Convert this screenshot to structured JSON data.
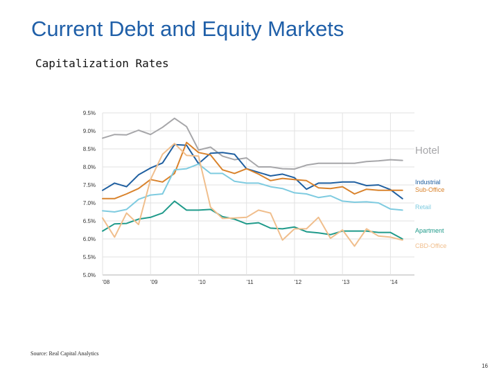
{
  "slide": {
    "title": "Current Debt and Equity Markets",
    "subtitle": "Capitalization Rates",
    "source": "Source: Real Capital Analytics",
    "page_number": "16"
  },
  "chart_data": {
    "type": "line",
    "title": "",
    "xlabel": "",
    "ylabel": "",
    "x_ticks": [
      "'08",
      "'09",
      "'10",
      "'11",
      "'12",
      "'13",
      "'14"
    ],
    "y_ticks": [
      "9.5%",
      "9.0%",
      "8.5%",
      "8.0%",
      "7.5%",
      "7.0%",
      "6.5%",
      "6.0%",
      "5.5%",
      "5.0%"
    ],
    "ylim": [
      5.0,
      9.5
    ],
    "xlim": [
      2008.0,
      2014.5
    ],
    "grid": true,
    "legend": "inline-right",
    "series": [
      {
        "name": "Hotel",
        "color": "#a6a6a9",
        "x": [
          2008.0,
          2008.25,
          2008.5,
          2008.75,
          2009.0,
          2009.25,
          2009.5,
          2009.75,
          2010.0,
          2010.25,
          2010.5,
          2010.75,
          2011.0,
          2011.25,
          2011.5,
          2011.75,
          2012.0,
          2012.25,
          2012.5,
          2012.75,
          2013.0,
          2013.25,
          2013.5,
          2013.75,
          2014.0,
          2014.25
        ],
        "values": [
          8.8,
          8.9,
          8.89,
          9.02,
          8.9,
          9.1,
          9.35,
          9.12,
          8.47,
          8.55,
          8.3,
          8.2,
          8.25,
          8.0,
          8.0,
          7.95,
          7.94,
          8.05,
          8.1,
          8.1,
          8.1,
          8.1,
          8.15,
          8.17,
          8.2,
          8.18
        ]
      },
      {
        "name": "Industrial",
        "color": "#1f5fa0",
        "x": [
          2008.0,
          2008.25,
          2008.5,
          2008.75,
          2009.0,
          2009.25,
          2009.5,
          2009.75,
          2010.0,
          2010.25,
          2010.5,
          2010.75,
          2011.0,
          2011.25,
          2011.5,
          2011.75,
          2012.0,
          2012.25,
          2012.5,
          2012.75,
          2013.0,
          2013.25,
          2013.5,
          2013.75,
          2014.0,
          2014.25
        ],
        "values": [
          7.35,
          7.55,
          7.45,
          7.78,
          7.97,
          8.11,
          8.62,
          8.6,
          8.09,
          8.38,
          8.4,
          8.35,
          7.95,
          7.85,
          7.75,
          7.8,
          7.7,
          7.38,
          7.55,
          7.55,
          7.58,
          7.58,
          7.48,
          7.5,
          7.37,
          7.12
        ]
      },
      {
        "name": "Sub-Office",
        "color": "#d9822b",
        "x": [
          2008.0,
          2008.25,
          2008.5,
          2008.75,
          2009.0,
          2009.25,
          2009.5,
          2009.75,
          2010.0,
          2010.25,
          2010.5,
          2010.75,
          2011.0,
          2011.25,
          2011.5,
          2011.75,
          2012.0,
          2012.25,
          2012.5,
          2012.75,
          2013.0,
          2013.25,
          2013.5,
          2013.75,
          2014.0,
          2014.25
        ],
        "values": [
          7.12,
          7.12,
          7.25,
          7.4,
          7.65,
          7.58,
          7.82,
          8.68,
          8.4,
          8.33,
          7.92,
          7.82,
          7.95,
          7.8,
          7.62,
          7.68,
          7.65,
          7.62,
          7.42,
          7.4,
          7.45,
          7.25,
          7.38,
          7.35,
          7.35,
          7.35
        ]
      },
      {
        "name": "Retail",
        "color": "#7ecbe0",
        "x": [
          2008.0,
          2008.25,
          2008.5,
          2008.75,
          2009.0,
          2009.25,
          2009.5,
          2009.75,
          2010.0,
          2010.25,
          2010.5,
          2010.75,
          2011.0,
          2011.25,
          2011.5,
          2011.75,
          2012.0,
          2012.25,
          2012.5,
          2012.75,
          2013.0,
          2013.25,
          2013.5,
          2013.75,
          2014.0,
          2014.25
        ],
        "values": [
          6.78,
          6.75,
          6.82,
          7.1,
          7.22,
          7.25,
          7.92,
          7.95,
          8.08,
          7.82,
          7.82,
          7.6,
          7.55,
          7.55,
          7.45,
          7.4,
          7.28,
          7.25,
          7.15,
          7.2,
          7.05,
          7.02,
          7.03,
          7.0,
          6.83,
          6.8
        ]
      },
      {
        "name": "Apartment",
        "color": "#1f9a8a",
        "x": [
          2008.0,
          2008.25,
          2008.5,
          2008.75,
          2009.0,
          2009.25,
          2009.5,
          2009.75,
          2010.0,
          2010.25,
          2010.5,
          2010.75,
          2011.0,
          2011.25,
          2011.5,
          2011.75,
          2012.0,
          2012.25,
          2012.5,
          2012.75,
          2013.0,
          2013.25,
          2013.5,
          2013.75,
          2014.0,
          2014.25
        ],
        "values": [
          6.22,
          6.42,
          6.43,
          6.55,
          6.6,
          6.72,
          7.05,
          6.8,
          6.8,
          6.82,
          6.62,
          6.55,
          6.42,
          6.45,
          6.3,
          6.28,
          6.33,
          6.2,
          6.17,
          6.12,
          6.22,
          6.22,
          6.22,
          6.18,
          6.18,
          6.0
        ]
      },
      {
        "name": "CBD-Office",
        "color": "#f0be8c",
        "x": [
          2008.0,
          2008.25,
          2008.5,
          2008.75,
          2009.0,
          2009.25,
          2009.5,
          2009.75,
          2010.0,
          2010.25,
          2010.5,
          2010.75,
          2011.0,
          2011.25,
          2011.5,
          2011.75,
          2012.0,
          2012.25,
          2012.5,
          2012.75,
          2013.0,
          2013.25,
          2013.5,
          2013.75,
          2014.0,
          2014.25
        ],
        "values": [
          6.58,
          6.05,
          6.72,
          6.4,
          7.65,
          8.35,
          8.65,
          8.32,
          8.3,
          6.88,
          6.57,
          6.58,
          6.6,
          6.8,
          6.72,
          5.97,
          6.28,
          6.28,
          6.6,
          6.02,
          6.25,
          5.8,
          6.28,
          6.08,
          6.05,
          5.97
        ]
      }
    ]
  }
}
